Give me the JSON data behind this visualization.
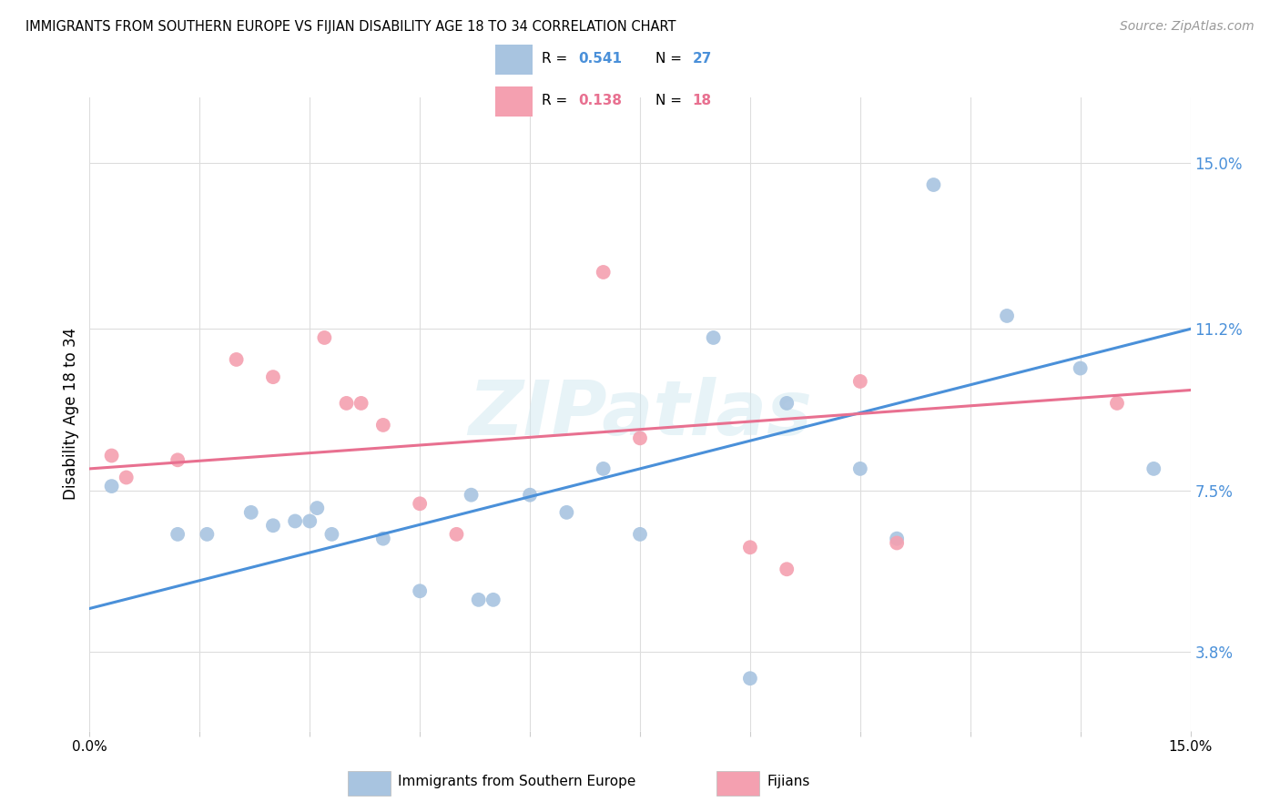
{
  "title": "IMMIGRANTS FROM SOUTHERN EUROPE VS FIJIAN DISABILITY AGE 18 TO 34 CORRELATION CHART",
  "source": "Source: ZipAtlas.com",
  "ylabel_label": "Disability Age 18 to 34",
  "xlim": [
    0.0,
    15.0
  ],
  "ylim": [
    2.0,
    16.5
  ],
  "legend_label1": "Immigrants from Southern Europe",
  "legend_label2": "Fijians",
  "R1": "0.541",
  "N1": "27",
  "R2": "0.138",
  "N2": "18",
  "blue_color": "#a8c4e0",
  "pink_color": "#f4a0b0",
  "blue_line_color": "#4a90d9",
  "pink_line_color": "#e87090",
  "watermark": "ZIPatlas",
  "blue_scatter": [
    [
      0.3,
      7.6
    ],
    [
      1.2,
      6.5
    ],
    [
      1.6,
      6.5
    ],
    [
      2.2,
      7.0
    ],
    [
      2.5,
      6.7
    ],
    [
      2.8,
      6.8
    ],
    [
      3.0,
      6.8
    ],
    [
      3.1,
      7.1
    ],
    [
      3.3,
      6.5
    ],
    [
      4.0,
      6.4
    ],
    [
      4.5,
      5.2
    ],
    [
      5.2,
      7.4
    ],
    [
      5.3,
      5.0
    ],
    [
      5.5,
      5.0
    ],
    [
      6.0,
      7.4
    ],
    [
      6.5,
      7.0
    ],
    [
      7.0,
      8.0
    ],
    [
      7.5,
      6.5
    ],
    [
      8.5,
      11.0
    ],
    [
      9.0,
      3.2
    ],
    [
      9.5,
      9.5
    ],
    [
      10.5,
      8.0
    ],
    [
      11.0,
      6.4
    ],
    [
      11.5,
      14.5
    ],
    [
      12.5,
      11.5
    ],
    [
      13.5,
      10.3
    ],
    [
      14.5,
      8.0
    ]
  ],
  "pink_scatter": [
    [
      0.3,
      8.3
    ],
    [
      0.5,
      7.8
    ],
    [
      1.2,
      8.2
    ],
    [
      2.0,
      10.5
    ],
    [
      2.5,
      10.1
    ],
    [
      3.2,
      11.0
    ],
    [
      3.5,
      9.5
    ],
    [
      3.7,
      9.5
    ],
    [
      4.0,
      9.0
    ],
    [
      4.5,
      7.2
    ],
    [
      5.0,
      6.5
    ],
    [
      7.0,
      12.5
    ],
    [
      7.5,
      8.7
    ],
    [
      9.0,
      6.2
    ],
    [
      9.5,
      5.7
    ],
    [
      10.5,
      10.0
    ],
    [
      11.0,
      6.3
    ],
    [
      14.0,
      9.5
    ]
  ],
  "blue_line_x": [
    0.0,
    15.0
  ],
  "blue_line_y": [
    4.8,
    11.2
  ],
  "pink_line_x": [
    0.0,
    15.0
  ],
  "pink_line_y": [
    8.0,
    9.8
  ],
  "ytick_vals": [
    3.8,
    7.5,
    11.2,
    15.0
  ],
  "ytick_labels": [
    "3.8%",
    "7.5%",
    "11.2%",
    "15.0%"
  ],
  "xtick_positions": [
    0.0,
    1.5,
    3.0,
    4.5,
    6.0,
    7.5,
    9.0,
    10.5,
    12.0,
    13.5,
    15.0
  ]
}
